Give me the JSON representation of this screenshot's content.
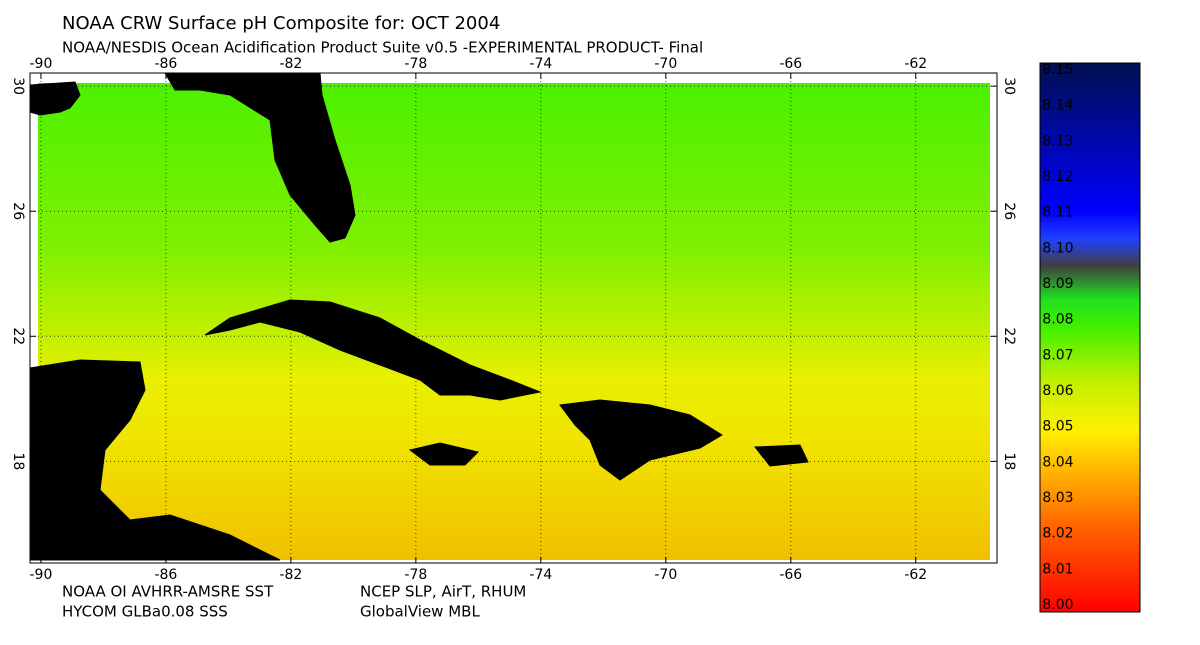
{
  "map": {
    "title": "NOAA CRW Surface pH Composite for: OCT 2004",
    "subtitle": "NOAA/NESDIS Ocean Acidification Product Suite  v0.5 -EXPERIMENTAL PRODUCT-   Final",
    "xlim": [
      -90.35,
      -59.4
    ],
    "ylim": [
      14.75,
      30.42
    ],
    "xticks": [
      -90,
      -86,
      -82,
      -78,
      -74,
      -70,
      -66,
      -62
    ],
    "yticks": [
      18,
      22,
      26,
      30
    ],
    "grid": true
  },
  "colorbar": {
    "lim": [
      8,
      8.15
    ],
    "ticks": [
      {
        "value": 8,
        "label": "8.00"
      },
      8.01,
      8.02,
      8.03,
      8.04,
      8.05,
      8.06,
      8.07,
      8.08,
      8.09,
      {
        "value": 8.1,
        "label": "8.10"
      },
      8.11,
      8.12,
      8.13,
      8.14,
      8.15
    ]
  },
  "credits": [
    "NOAA OI AVHRR-AMSRE SST",
    "NCEP SLP, AirT, RHUM",
    "HYCOM GLBa0.08 SSS",
    "GlobalView MBL"
  ]
}
